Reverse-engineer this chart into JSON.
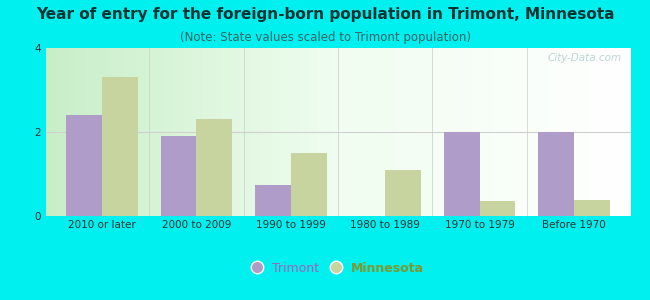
{
  "title": "Year of entry for the foreign-born population in Trimont, Minnesota",
  "subtitle": "(Note: State values scaled to Trimont population)",
  "categories": [
    "2010 or later",
    "2000 to 2009",
    "1990 to 1999",
    "1980 to 1989",
    "1970 to 1979",
    "Before 1970"
  ],
  "trimont_values": [
    2.4,
    1.9,
    0.75,
    0.0,
    2.0,
    2.0
  ],
  "minnesota_values": [
    3.3,
    2.3,
    1.5,
    1.1,
    0.35,
    0.38
  ],
  "trimont_color": "#b09cc8",
  "minnesota_color": "#c8d4a0",
  "bg_outer": "#00efef",
  "grid_color": "#d0d0d0",
  "ylim": [
    0,
    4
  ],
  "yticks": [
    0,
    2,
    4
  ],
  "bar_width": 0.38,
  "title_fontsize": 11,
  "subtitle_fontsize": 8.5,
  "tick_fontsize": 7.5,
  "legend_label_trimont": "Trimont",
  "legend_label_minnesota": "Minnesota",
  "watermark": "City-Data.com"
}
